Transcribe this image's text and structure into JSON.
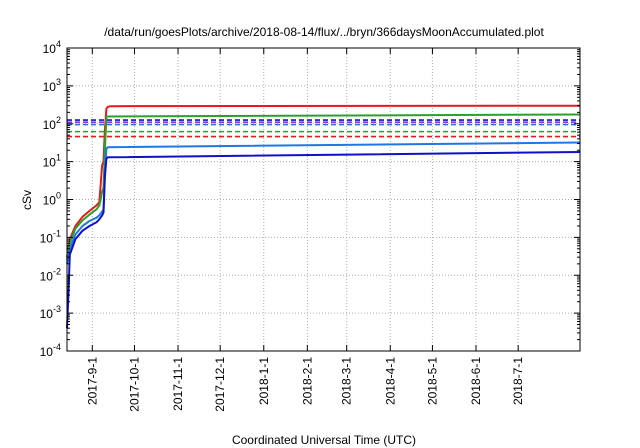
{
  "chart_data": {
    "type": "line",
    "title": "/data/run/goesPlots/archive/2018-08-14/flux/../bryn/366daysMoonAccumulated.plot",
    "xlabel": "Coordinated Universal Time (UTC)",
    "ylabel": "cSv",
    "yscale": "log",
    "ylim": [
      0.0001,
      10000
    ],
    "xlim": [
      "2017-08-14",
      "2018-08-14"
    ],
    "grid": true,
    "legend": "none",
    "x_ticks": [
      "2017-9-1",
      "2017-10-1",
      "2017-11-1",
      "2017-12-1",
      "2018-1-1",
      "2018-2-1",
      "2018-3-1",
      "2018-4-1",
      "2018-5-1",
      "2018-6-1",
      "2018-7-1"
    ],
    "x_tick_dates": [
      "2017-09-01",
      "2017-10-01",
      "2017-11-01",
      "2017-12-01",
      "2018-01-01",
      "2018-02-01",
      "2018-03-01",
      "2018-04-01",
      "2018-05-01",
      "2018-06-01",
      "2018-07-01"
    ],
    "y_ticks": [
      {
        "value": 0.0001,
        "base": "10",
        "exp": "-4"
      },
      {
        "value": 0.001,
        "base": "10",
        "exp": "-3"
      },
      {
        "value": 0.01,
        "base": "10",
        "exp": "-2"
      },
      {
        "value": 0.1,
        "base": "10",
        "exp": "-1"
      },
      {
        "value": 1,
        "base": "10",
        "exp": "0"
      },
      {
        "value": 10,
        "base": "10",
        "exp": "1"
      },
      {
        "value": 100,
        "base": "10",
        "exp": "2"
      },
      {
        "value": 1000,
        "base": "10",
        "exp": "3"
      },
      {
        "value": 10000,
        "base": "10",
        "exp": "4"
      }
    ],
    "series": [
      {
        "color": "#e41a1c",
        "x": [
          "2017-08-14",
          "2017-08-16",
          "2017-08-20",
          "2017-08-25",
          "2017-08-30",
          "2017-09-04",
          "2017-09-06",
          "2017-09-07",
          "2017-09-08",
          "2017-09-09",
          "2017-09-10",
          "2017-09-11",
          "2017-09-12",
          "2017-09-14",
          "2018-08-14"
        ],
        "y": [
          0.03,
          0.09,
          0.2,
          0.35,
          0.5,
          0.7,
          0.85,
          2.5,
          8,
          10,
          70,
          250,
          280,
          290,
          300
        ]
      },
      {
        "color": "#2ca02c",
        "x": [
          "2017-08-14",
          "2017-08-16",
          "2017-08-20",
          "2017-08-25",
          "2017-08-30",
          "2017-09-04",
          "2017-09-06",
          "2017-09-07",
          "2017-09-08",
          "2017-09-09",
          "2017-09-10",
          "2017-09-11",
          "2017-09-12",
          "2018-08-14"
        ],
        "y": [
          0.025,
          0.07,
          0.17,
          0.28,
          0.4,
          0.55,
          0.7,
          1.0,
          1.6,
          2.0,
          20,
          150,
          155,
          175
        ]
      },
      {
        "color": "#1f77e4",
        "x": [
          "2017-08-14",
          "2017-08-16",
          "2017-08-20",
          "2017-08-25",
          "2017-08-30",
          "2017-09-04",
          "2017-09-06",
          "2017-09-08",
          "2017-09-09",
          "2017-09-10",
          "2017-09-11",
          "2017-09-12",
          "2018-08-14"
        ],
        "y": [
          0.02,
          0.05,
          0.12,
          0.2,
          0.27,
          0.33,
          0.38,
          0.48,
          0.55,
          5,
          22,
          24,
          32
        ]
      },
      {
        "color": "#1010c8",
        "x": [
          "2017-08-14",
          "2017-08-15",
          "2017-08-16",
          "2017-08-20",
          "2017-08-25",
          "2017-08-30",
          "2017-09-04",
          "2017-09-06",
          "2017-09-08",
          "2017-09-09",
          "2017-09-10",
          "2017-09-11",
          "2017-09-12",
          "2018-08-14"
        ],
        "y": [
          0.0004,
          0.003,
          0.035,
          0.09,
          0.15,
          0.2,
          0.25,
          0.3,
          0.38,
          0.45,
          4,
          12,
          13,
          18
        ]
      }
    ],
    "reference_lines": [
      {
        "value": 125,
        "color": "#1010c8",
        "style": "dashed"
      },
      {
        "value": 110,
        "color": "#9b30d0",
        "style": "dashed"
      },
      {
        "value": 95,
        "color": "#1f77e4",
        "style": "dashed"
      },
      {
        "value": 62,
        "color": "#2ca02c",
        "style": "dashed"
      },
      {
        "value": 46,
        "color": "#e41a1c",
        "style": "dashed"
      }
    ]
  }
}
